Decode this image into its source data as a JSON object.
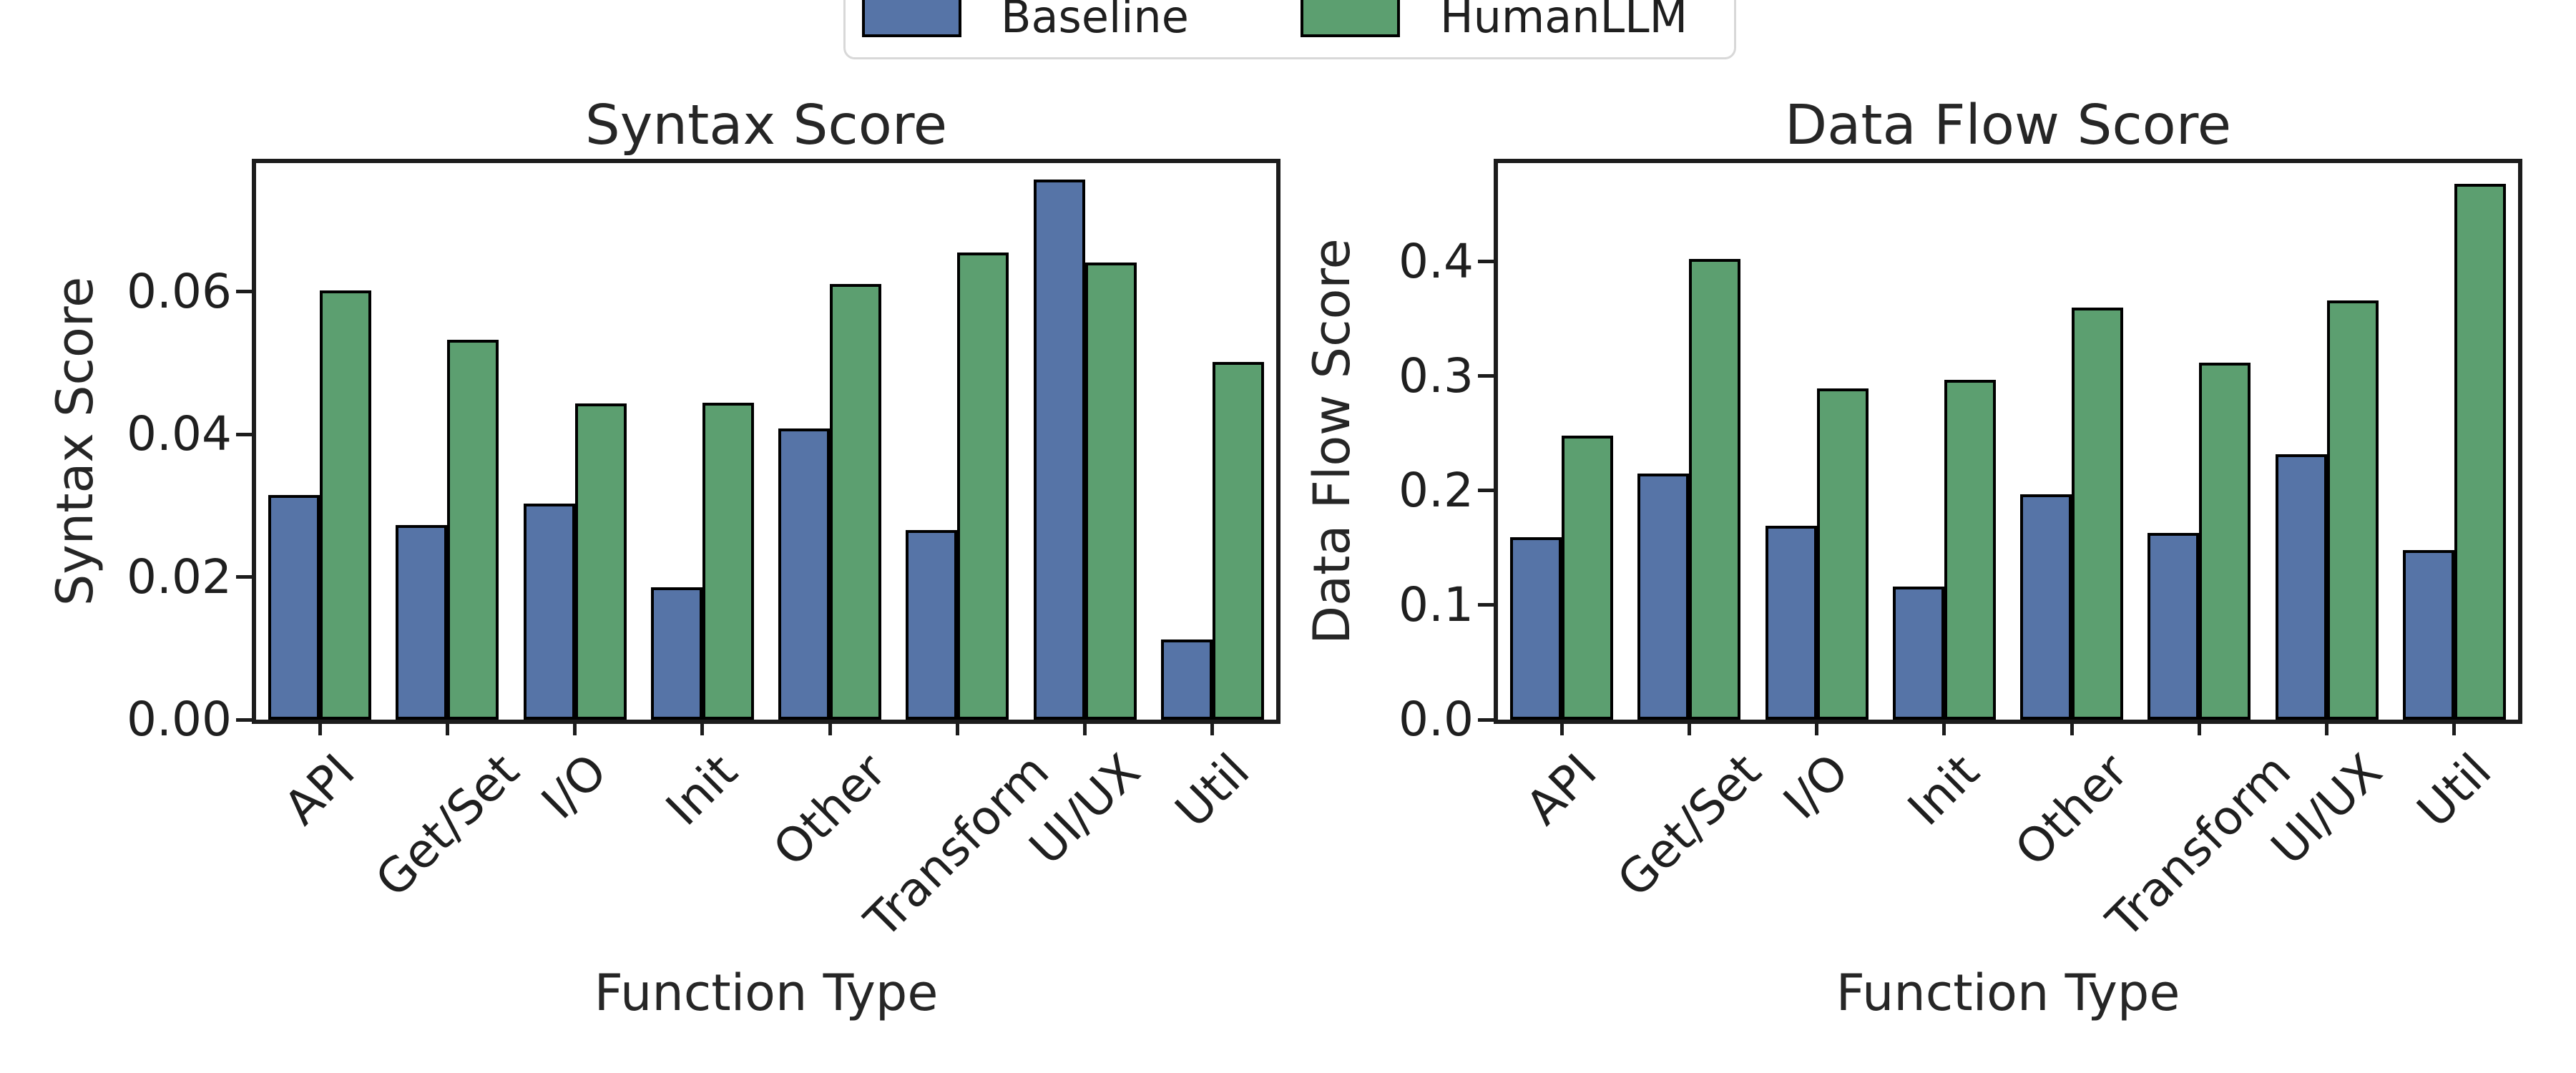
{
  "figure": {
    "background": "#ffffff",
    "text_color": "#1f1f1f",
    "spine_color": "#1c1c1c"
  },
  "legend": {
    "position": "top-center, clipped at top edge of image",
    "border_color": "#d8d8d8",
    "items": [
      {
        "label": "Baseline",
        "color": "#5674a7",
        "swatch": "filled-rect-black-edge"
      },
      {
        "label": "HumanLLM",
        "color": "#5c9f70",
        "swatch": "filled-rect-black-edge"
      }
    ]
  },
  "chart_data": [
    {
      "type": "bar",
      "title": "Syntax Score",
      "xlabel": "Function Type",
      "ylabel": "Syntax Score",
      "categories": [
        "API",
        "Get/Set",
        "I/O",
        "Init",
        "Other",
        "Transform",
        "UI/UX",
        "Util"
      ],
      "series": [
        {
          "name": "Baseline",
          "values": [
            0.0315,
            0.0273,
            0.0303,
            0.0185,
            0.0408,
            0.0266,
            0.0757,
            0.0112
          ]
        },
        {
          "name": "HumanLLM",
          "values": [
            0.0602,
            0.0532,
            0.0443,
            0.0444,
            0.0611,
            0.0655,
            0.0641,
            0.0501
          ]
        }
      ],
      "ylim": [
        0,
        0.078
      ],
      "yticks": [
        {
          "value": 0.0,
          "label": "0.00"
        },
        {
          "value": 0.02,
          "label": "0.02"
        },
        {
          "value": 0.04,
          "label": "0.04"
        },
        {
          "value": 0.06,
          "label": "0.06"
        }
      ],
      "xtick_rotation_deg": 45,
      "grid": false,
      "legend_position": "shared figure legend, top center"
    },
    {
      "type": "bar",
      "title": "Data Flow Score",
      "xlabel": "Function Type",
      "ylabel": "Data Flow Score",
      "categories": [
        "API",
        "Get/Set",
        "I/O",
        "Init",
        "Other",
        "Transform",
        "UI/UX",
        "Util"
      ],
      "series": [
        {
          "name": "Baseline",
          "values": [
            0.159,
            0.215,
            0.169,
            0.116,
            0.197,
            0.163,
            0.232,
            0.148
          ]
        },
        {
          "name": "HumanLLM",
          "values": [
            0.248,
            0.402,
            0.289,
            0.297,
            0.36,
            0.312,
            0.366,
            0.468
          ]
        }
      ],
      "ylim": [
        0,
        0.486
      ],
      "yticks": [
        {
          "value": 0.0,
          "label": "0.0"
        },
        {
          "value": 0.1,
          "label": "0.1"
        },
        {
          "value": 0.2,
          "label": "0.2"
        },
        {
          "value": 0.3,
          "label": "0.3"
        },
        {
          "value": 0.4,
          "label": "0.4"
        }
      ],
      "xtick_rotation_deg": 45,
      "grid": false,
      "legend_position": "shared figure legend, top center"
    }
  ],
  "colors": {
    "baseline_bar": "#5674a7",
    "humanllm_bar": "#5c9f70",
    "bar_edge": "#000000"
  }
}
